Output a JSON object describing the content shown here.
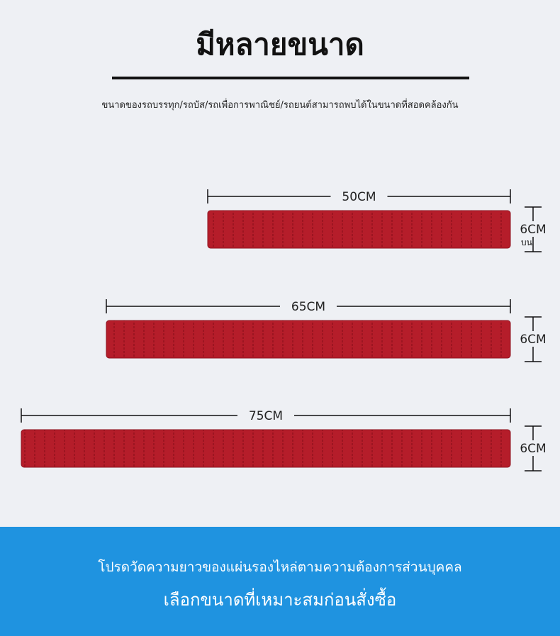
{
  "header": {
    "title": "มีหลายขนาด",
    "subtitle": "ขนาดของรถบรรทุก/รถบัส/รถเพื่อการพาณิชย์/รถยนต์สามารถพบได้ในขนาดที่สอดคล้องกัน"
  },
  "sizes": [
    {
      "length": "50CM",
      "width": "6CM",
      "note": "บน"
    },
    {
      "length": "65CM",
      "width": "6CM"
    },
    {
      "length": "75CM",
      "width": "6CM"
    }
  ],
  "footer": {
    "line1": "โปรดวัดความยาวของแผ่นรองไหล่ตามความต้องการส่วนบุคคล",
    "line2": "เลือกขนาดที่เหมาะสมก่อนสั่งซื้อ"
  }
}
